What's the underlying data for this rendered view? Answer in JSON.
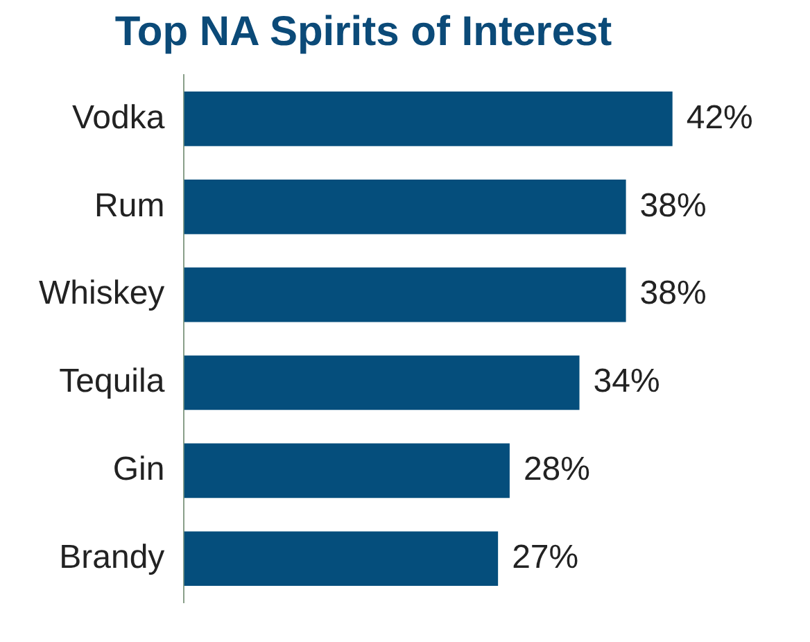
{
  "chart_data": {
    "type": "bar",
    "orientation": "horizontal",
    "title": "Top NA Spirits of Interest",
    "categories": [
      "Vodka",
      "Rum",
      "Whiskey",
      "Tequila",
      "Gin",
      "Brandy"
    ],
    "values": [
      42,
      38,
      38,
      34,
      28,
      27
    ],
    "value_labels": [
      "42%",
      "38%",
      "38%",
      "34%",
      "28%",
      "27%"
    ],
    "color": "#054e7c",
    "tick_labels": "y",
    "grid": false,
    "legend": false
  }
}
